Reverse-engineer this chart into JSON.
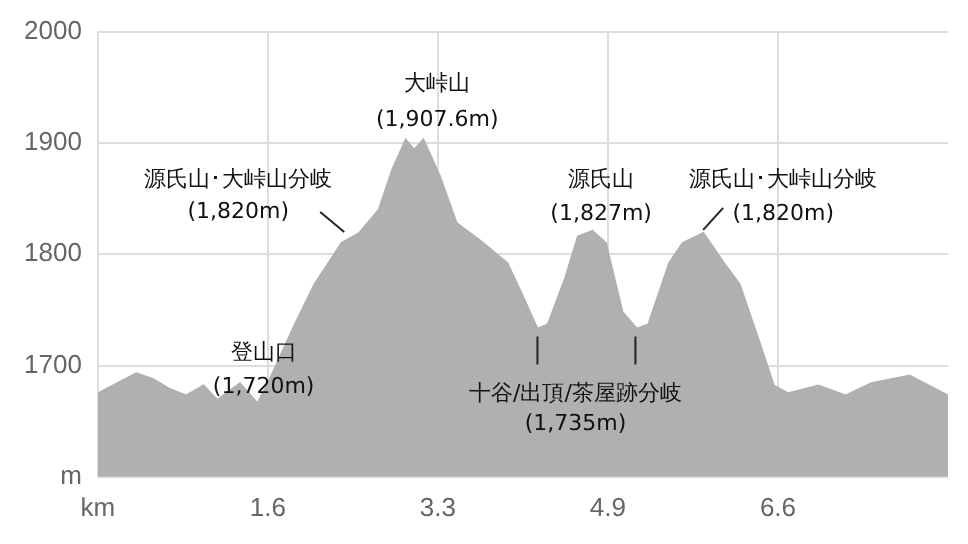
{
  "chart_data": {
    "type": "area",
    "x": [
      0,
      0.37,
      0.53,
      0.69,
      0.85,
      1.02,
      1.15,
      1.37,
      1.54,
      1.66,
      1.9,
      2.09,
      2.35,
      2.52,
      2.71,
      2.84,
      2.97,
      3.05,
      3.14,
      3.3,
      3.46,
      3.69,
      3.95,
      4.08,
      4.24,
      4.34,
      4.51,
      4.63,
      4.77,
      4.9,
      5.06,
      5.2,
      5.31,
      5.51,
      5.64,
      5.84,
      6.04,
      6.19,
      6.37,
      6.52,
      6.66,
      6.95,
      7.21,
      7.46,
      7.83,
      8.2
    ],
    "values": [
      1675,
      1693,
      1688,
      1679,
      1673,
      1682,
      1669,
      1684,
      1666,
      1688,
      1737,
      1773,
      1810,
      1819,
      1840,
      1876,
      1903,
      1894,
      1903,
      1870,
      1828,
      1812,
      1792,
      1766,
      1733,
      1737,
      1779,
      1816,
      1821,
      1810,
      1748,
      1733,
      1737,
      1792,
      1810,
      1819,
      1792,
      1773,
      1724,
      1682,
      1675,
      1682,
      1673,
      1684,
      1691,
      1673
    ],
    "color": "#b0b0b0",
    "xlim": [
      0,
      8.2
    ],
    "xticks": [
      {
        "value": 0,
        "label": "km"
      },
      {
        "value": 1.64,
        "label": "1.6"
      },
      {
        "value": 3.28,
        "label": "3.3"
      },
      {
        "value": 4.92,
        "label": "4.9"
      },
      {
        "value": 6.56,
        "label": "6.6"
      }
    ],
    "ylim": [
      1600,
      2000
    ],
    "yticks": [
      {
        "value": 1600,
        "label": "m"
      },
      1700,
      1800,
      1900,
      2000
    ],
    "grid": true,
    "annotations": [
      {
        "text": "大峠山\n(1,907.6m)",
        "x": 3.1,
        "y": 1907.6
      },
      {
        "text": "源氏山･大峠山分岐\n(1,820m)",
        "x": 2.55,
        "y": 1820
      },
      "登山口\n(1,720m)",
      {
        "text": "源氏山\n(1,827m)",
        "x": 4.7,
        "y": 1827
      },
      {
        "text": "源氏山･大峠山分岐\n(1,820m)",
        "x": 5.8,
        "y": 1820
      },
      {
        "text": "十谷/出頂/茶屋跡分岐\n(1,735m)",
        "x": 4.24,
        "y": 1735
      }
    ]
  }
}
